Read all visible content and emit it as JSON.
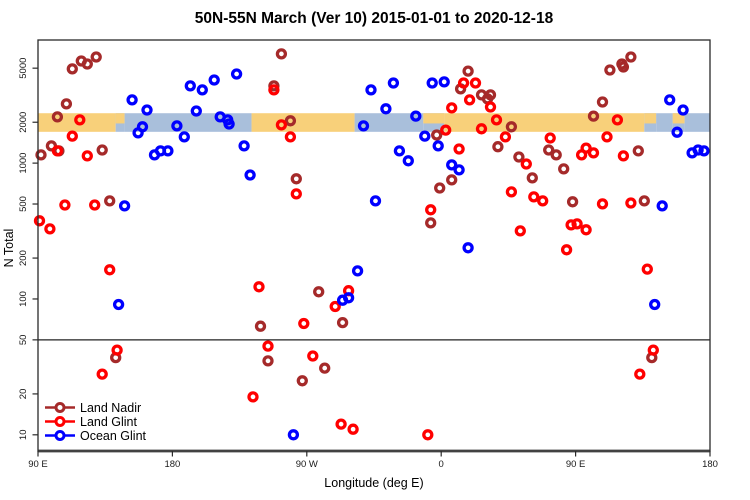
{
  "title": "50N-55N March (Ver 10)   2015-01-01 to 2020-12-18",
  "chart_data": {
    "type": "scatter",
    "title": "50N-55N March (Ver 10)   2015-01-01 to 2020-12-18",
    "xlabel": "Longitude (deg E)",
    "ylabel": "N Total",
    "y_scale": "log",
    "xlim": [
      90,
      540
    ],
    "ylim": [
      7.6,
      8060
    ],
    "x_ticks": [
      {
        "lon": 90,
        "label": "90 E"
      },
      {
        "lon": 180,
        "label": "180"
      },
      {
        "lon": 270,
        "label": "90 W"
      },
      {
        "lon": 360,
        "label": "0"
      },
      {
        "lon": 450,
        "label": "90 E"
      },
      {
        "lon": 540,
        "label": "180"
      }
    ],
    "y_ticks": [
      10,
      20,
      50,
      100,
      200,
      500,
      1000,
      2000,
      5000
    ],
    "reference_line_value": 50,
    "surface_band": {
      "value_range": [
        1700,
        2330
      ],
      "land_color": "#F8D07A",
      "ocean_color": "#A9BFDB",
      "segments": [
        {
          "from": 90,
          "to": 142,
          "type": "land"
        },
        {
          "from": 142,
          "to": 148,
          "type": "mixed"
        },
        {
          "from": 148,
          "to": 233,
          "type": "ocean"
        },
        {
          "from": 233,
          "to": 302,
          "type": "land"
        },
        {
          "from": 302,
          "to": 348,
          "type": "ocean"
        },
        {
          "from": 348,
          "to": 362,
          "type": "mixed"
        },
        {
          "from": 362,
          "to": 496,
          "type": "land"
        },
        {
          "from": 496,
          "to": 504,
          "type": "mixed"
        },
        {
          "from": 504,
          "to": 515,
          "type": "ocean"
        },
        {
          "from": 515,
          "to": 523,
          "type": "mixed"
        },
        {
          "from": 523,
          "to": 540,
          "type": "ocean"
        }
      ]
    },
    "legend": {
      "position": "bottom-left",
      "entries": [
        "Land Nadir",
        "Land Glint",
        "Ocean Glint"
      ]
    },
    "series": [
      {
        "name": "Land Nadir",
        "color": "#A52A2A",
        "points": [
          [
            113,
            4940
          ],
          [
            119,
            5650
          ],
          [
            123,
            5370
          ],
          [
            129,
            6040
          ],
          [
            109,
            2730
          ],
          [
            103,
            2190
          ],
          [
            92,
            1150
          ],
          [
            99,
            1340
          ],
          [
            104,
            1230
          ],
          [
            133,
            1250
          ],
          [
            138,
            527
          ],
          [
            253,
            6370
          ],
          [
            248,
            3700
          ],
          [
            259,
            2050
          ],
          [
            263,
            766
          ],
          [
            239,
            63
          ],
          [
            278,
            113
          ],
          [
            294,
            67
          ],
          [
            244,
            35
          ],
          [
            282,
            31
          ],
          [
            267,
            25
          ],
          [
            142,
            37
          ],
          [
            378,
            4760
          ],
          [
            373,
            3520
          ],
          [
            387,
            3180
          ],
          [
            391,
            2970
          ],
          [
            393,
            3180
          ],
          [
            357,
            1610
          ],
          [
            367,
            752
          ],
          [
            359,
            656
          ],
          [
            353,
            363
          ],
          [
            398,
            1320
          ],
          [
            407,
            1850
          ],
          [
            412,
            1110
          ],
          [
            421,
            778
          ],
          [
            432,
            1250
          ],
          [
            437,
            1150
          ],
          [
            442,
            906
          ],
          [
            448,
            519
          ],
          [
            462,
            2220
          ],
          [
            468,
            2820
          ],
          [
            473,
            4850
          ],
          [
            481,
            5370
          ],
          [
            487,
            6040
          ],
          [
            482,
            5100
          ],
          [
            492,
            1230
          ],
          [
            496,
            527
          ],
          [
            501,
            37
          ]
        ]
      },
      {
        "name": "Land Glint",
        "color": "#FF0000",
        "points": [
          [
            113,
            1580
          ],
          [
            118,
            2080
          ],
          [
            103,
            1230
          ],
          [
            123,
            1130
          ],
          [
            91,
            376
          ],
          [
            98,
            328
          ],
          [
            108,
            492
          ],
          [
            128,
            492
          ],
          [
            138,
            164
          ],
          [
            143,
            42
          ],
          [
            133,
            28
          ],
          [
            248,
            3460
          ],
          [
            253,
            1910
          ],
          [
            259,
            1560
          ],
          [
            263,
            593
          ],
          [
            238,
            123
          ],
          [
            268,
            66
          ],
          [
            244,
            45
          ],
          [
            274,
            38
          ],
          [
            234,
            19
          ],
          [
            293,
            12
          ],
          [
            301,
            11
          ],
          [
            298,
            115
          ],
          [
            289,
            88
          ],
          [
            351,
            10
          ],
          [
            375,
            3890
          ],
          [
            383,
            3890
          ],
          [
            379,
            2920
          ],
          [
            367,
            2550
          ],
          [
            363,
            1750
          ],
          [
            393,
            2590
          ],
          [
            397,
            2080
          ],
          [
            387,
            1790
          ],
          [
            372,
            1270
          ],
          [
            403,
            1560
          ],
          [
            417,
            986
          ],
          [
            407,
            614
          ],
          [
            422,
            564
          ],
          [
            428,
            527
          ],
          [
            353,
            453
          ],
          [
            413,
            317
          ],
          [
            433,
            1530
          ],
          [
            444,
            230
          ],
          [
            454,
            1150
          ],
          [
            457,
            1290
          ],
          [
            462,
            1190
          ],
          [
            471,
            1560
          ],
          [
            478,
            2080
          ],
          [
            482,
            1130
          ],
          [
            468,
            501
          ],
          [
            487,
            509
          ],
          [
            447,
            351
          ],
          [
            451,
            357
          ],
          [
            457,
            323
          ],
          [
            498,
            166
          ],
          [
            502,
            42
          ],
          [
            493,
            28
          ]
        ]
      },
      {
        "name": "Ocean Glint",
        "color": "#0000FF",
        "points": [
          [
            153,
            2920
          ],
          [
            163,
            2460
          ],
          [
            160,
            1850
          ],
          [
            157,
            1670
          ],
          [
            183,
            1880
          ],
          [
            188,
            1560
          ],
          [
            192,
            3700
          ],
          [
            200,
            3460
          ],
          [
            196,
            2420
          ],
          [
            168,
            1150
          ],
          [
            172,
            1230
          ],
          [
            177,
            1230
          ],
          [
            144,
            91
          ],
          [
            148,
            484
          ],
          [
            223,
            4530
          ],
          [
            208,
            4090
          ],
          [
            212,
            2190
          ],
          [
            217,
            2080
          ],
          [
            218,
            1940
          ],
          [
            228,
            1340
          ],
          [
            232,
            818
          ],
          [
            316,
            527
          ],
          [
            308,
            1880
          ],
          [
            313,
            3460
          ],
          [
            328,
            3890
          ],
          [
            354,
            3890
          ],
          [
            362,
            3960
          ],
          [
            323,
            2510
          ],
          [
            343,
            2220
          ],
          [
            349,
            1580
          ],
          [
            332,
            1230
          ],
          [
            338,
            1040
          ],
          [
            358,
            1340
          ],
          [
            367,
            971
          ],
          [
            372,
            891
          ],
          [
            378,
            238
          ],
          [
            304,
            161
          ],
          [
            294,
            98
          ],
          [
            298,
            102
          ],
          [
            261,
            10
          ],
          [
            513,
            2920
          ],
          [
            522,
            2460
          ],
          [
            518,
            1690
          ],
          [
            528,
            1190
          ],
          [
            532,
            1250
          ],
          [
            536,
            1230
          ],
          [
            503,
            91
          ],
          [
            508,
            484
          ]
        ]
      }
    ]
  }
}
